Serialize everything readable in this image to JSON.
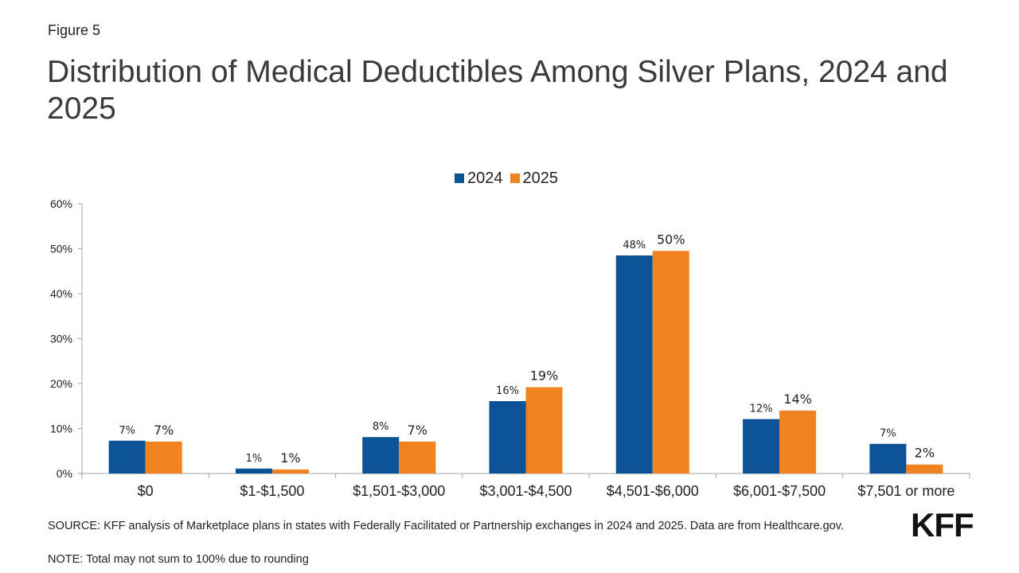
{
  "figure_label": "Figure 5",
  "title": "Distribution of Medical Deductibles Among Silver Plans, 2024 and 2025",
  "source": "SOURCE: KFF analysis of Marketplace plans in states with Federally Facilitated or Partnership exchanges in 2024 and 2025. Data are from Healthcare.gov.",
  "note": "NOTE: Total may not sum to 100% due to rounding",
  "logo": "KFF",
  "colors": {
    "series_2024": "#0b5394",
    "series_2025": "#f2821f",
    "axis": "#a6a6a6"
  },
  "chart_data": {
    "type": "bar",
    "categories": [
      "$0",
      "$1-$1,500",
      "$1,501-$3,000",
      "$3,001-$4,500",
      "$4,501-$6,000",
      "$6,001-$7,500",
      "$7,501 or more"
    ],
    "series": [
      {
        "name": "2024",
        "values": [
          7.3,
          1.1,
          8.1,
          16.1,
          48.5,
          12.1,
          6.6
        ],
        "labels": [
          "7%",
          "1%",
          "8%",
          "16%",
          "48%",
          "12%",
          "7%"
        ]
      },
      {
        "name": "2025",
        "values": [
          7.1,
          0.9,
          7.1,
          19.2,
          49.5,
          14.0,
          2.0
        ],
        "labels": [
          "7%",
          "1%",
          "7%",
          "19%",
          "50%",
          "14%",
          "2%"
        ]
      }
    ],
    "ylim": [
      0,
      60
    ],
    "yticks": [
      "0%",
      "10%",
      "20%",
      "30%",
      "40%",
      "50%",
      "60%"
    ],
    "xlabel": "",
    "ylabel": "",
    "grid": false,
    "legend_position": "top"
  }
}
